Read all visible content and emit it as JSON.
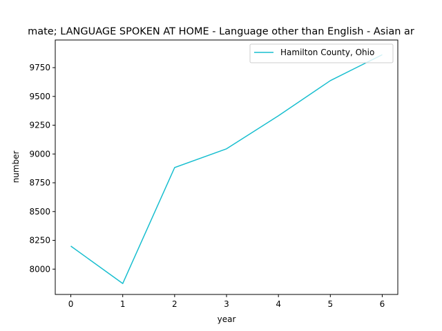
{
  "chart_data": {
    "type": "line",
    "title": "mate; LANGUAGE SPOKEN AT HOME - Language other than English - Asian ar",
    "xlabel": "year",
    "ylabel": "number",
    "x": [
      0,
      1,
      2,
      3,
      4,
      5,
      6
    ],
    "series": [
      {
        "name": "Hamilton County, Ohio",
        "color": "#17becf",
        "values": [
          8200,
          7875,
          8882,
          9045,
          9332,
          9637,
          9862
        ]
      }
    ],
    "xlim": [
      -0.3,
      6.3
    ],
    "ylim": [
      7780,
      9990
    ],
    "x_ticks": [
      0,
      1,
      2,
      3,
      4,
      5,
      6
    ],
    "y_ticks": [
      8000,
      8250,
      8500,
      8750,
      9000,
      9250,
      9500,
      9750
    ],
    "x_tick_labels": [
      "0",
      "1",
      "2",
      "3",
      "4",
      "5",
      "6"
    ],
    "y_tick_labels": [
      "8000",
      "8250",
      "8500",
      "8750",
      "9000",
      "9250",
      "9500",
      "9750"
    ],
    "grid": false,
    "legend_position": "upper right"
  }
}
